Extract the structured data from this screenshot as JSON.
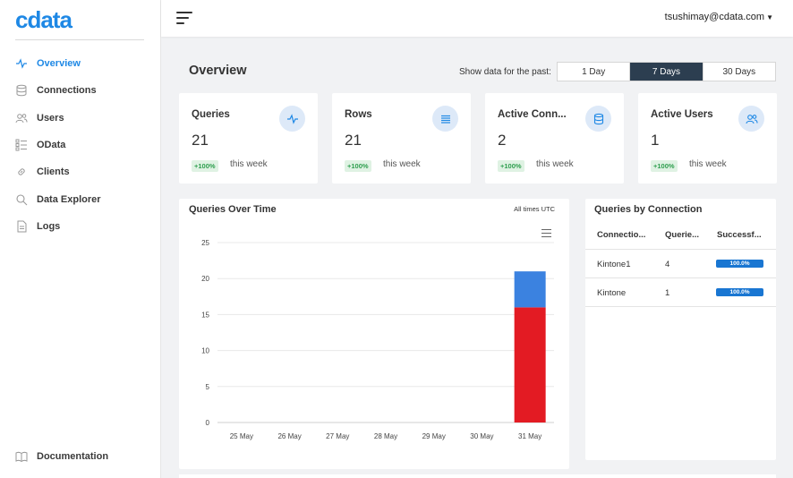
{
  "brand": {
    "logo_text": "cdata",
    "color": "#1e88e5"
  },
  "sidebar": {
    "items": [
      {
        "label": "Overview",
        "icon": "activity-icon",
        "active": true
      },
      {
        "label": "Connections",
        "icon": "database-icon"
      },
      {
        "label": "Users",
        "icon": "users-icon"
      },
      {
        "label": "OData",
        "icon": "odata-icon"
      },
      {
        "label": "Clients",
        "icon": "link-icon"
      },
      {
        "label": "Data Explorer",
        "icon": "search-icon"
      },
      {
        "label": "Logs",
        "icon": "file-icon"
      }
    ],
    "documentation": {
      "label": "Documentation",
      "icon": "book-icon"
    }
  },
  "topbar": {
    "user": "tsushimay@cdata.com"
  },
  "header": {
    "title": "Overview",
    "range_label": "Show data for the past:",
    "range_options": [
      "1 Day",
      "7 Days",
      "30 Days"
    ],
    "selected_range": "7 Days"
  },
  "stats": [
    {
      "title": "Queries",
      "value": "21",
      "badge": "+100%",
      "period": "this week",
      "icon": "activity-icon"
    },
    {
      "title": "Rows",
      "value": "21",
      "badge": "+100%",
      "period": "this week",
      "icon": "list-icon"
    },
    {
      "title": "Active Conn...",
      "value": "2",
      "badge": "+100%",
      "period": "this week",
      "icon": "database-icon"
    },
    {
      "title": "Active Users",
      "value": "1",
      "badge": "+100%",
      "period": "this week",
      "icon": "users-icon"
    }
  ],
  "chart_panel": {
    "title": "Queries Over Time",
    "note": "All times UTC"
  },
  "chart_data": {
    "type": "bar",
    "stacked": true,
    "categories": [
      "25 May",
      "26 May",
      "27 May",
      "28 May",
      "29 May",
      "30 May",
      "31 May"
    ],
    "series": [
      {
        "values": [
          0,
          0,
          0,
          0,
          0,
          0,
          16
        ],
        "color": "#e31b23"
      },
      {
        "values": [
          0,
          0,
          0,
          0,
          0,
          0,
          5
        ],
        "color": "#3b82e0"
      }
    ],
    "ylim": [
      0,
      25
    ],
    "yticks": [
      0,
      5,
      10,
      15,
      20,
      25
    ],
    "grid": true
  },
  "connections_table": {
    "title": "Queries by Connection",
    "columns": [
      "Connectio...",
      "Querie...",
      "Successf..."
    ],
    "rows": [
      {
        "name": "Kintone1",
        "queries": "4",
        "success": 1.0,
        "success_label": "100.0%"
      },
      {
        "name": "Kintone",
        "queries": "1",
        "success": 1.0,
        "success_label": "100.0%"
      }
    ]
  }
}
